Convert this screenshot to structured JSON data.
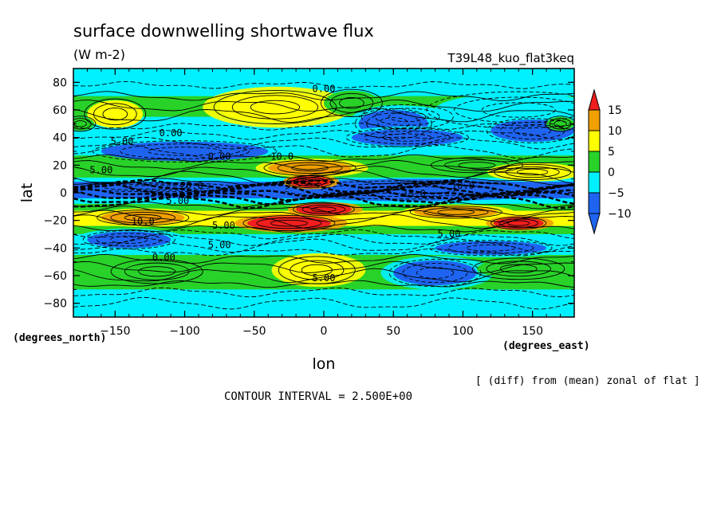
{
  "chart_data": {
    "type": "heatmap",
    "title": "surface downwelling shortwave flux",
    "units": "(W m-2)",
    "experiment": "T39L48_kuo_flat3keq",
    "xlabel": "lon",
    "ylabel": "lat",
    "x_unit_label": "(degrees_east)",
    "y_unit_label": "(degrees_north)",
    "xlim": [
      -180,
      180
    ],
    "ylim": [
      -90,
      90
    ],
    "x_ticks": [
      -150,
      -100,
      -50,
      0,
      50,
      100,
      150
    ],
    "y_ticks": [
      -80,
      -60,
      -40,
      -20,
      0,
      20,
      40,
      60,
      80
    ],
    "note": "[ (diff) from (mean) zonal of flat ]",
    "contour_interval_text": "CONTOUR INTERVAL = 2.500E+00",
    "contour_interval": 2.5,
    "colorbar": {
      "levels": [
        -10,
        -5,
        0,
        5,
        10,
        15
      ],
      "labels": [
        "15",
        "10",
        "5",
        "0",
        "-5",
        "-10"
      ],
      "colors": [
        "#1e64f0",
        "#00f0ff",
        "#28d228",
        "#ffff00",
        "#f0a000",
        "#f01e1e"
      ]
    },
    "contour_labels": [
      {
        "lon": 0,
        "lat": 73,
        "text": "0.00"
      },
      {
        "lon": -110,
        "lat": 41,
        "text": "0.00"
      },
      {
        "lon": -145,
        "lat": 35,
        "text": "5.00"
      },
      {
        "lon": -75,
        "lat": 24,
        "text": "0.00"
      },
      {
        "lon": -30,
        "lat": 24,
        "text": "10.0"
      },
      {
        "lon": -160,
        "lat": 14,
        "text": "5.00"
      },
      {
        "lon": -95,
        "lat": 3,
        "text": "20.0"
      },
      {
        "lon": -105,
        "lat": -8,
        "text": "5.00"
      },
      {
        "lon": 65,
        "lat": -3,
        "text": "15.0"
      },
      {
        "lon": 100,
        "lat": 3,
        "text": "10.0"
      },
      {
        "lon": -130,
        "lat": -23,
        "text": "10.0"
      },
      {
        "lon": -72,
        "lat": -26,
        "text": "5.00"
      },
      {
        "lon": -75,
        "lat": -40,
        "text": "5.00"
      },
      {
        "lon": 90,
        "lat": -32,
        "text": "5.00"
      },
      {
        "lon": -115,
        "lat": -49,
        "text": "0.00"
      },
      {
        "lon": 0,
        "lat": -64,
        "text": "5.00"
      }
    ],
    "anomaly_bands": [
      {
        "lat": 90,
        "value": -2
      },
      {
        "lat": 80,
        "value": -2
      },
      {
        "lat": 70,
        "value": -1
      },
      {
        "lat": 62,
        "value": 1
      },
      {
        "lat": 55,
        "value": -1
      },
      {
        "lat": 45,
        "value": -4
      },
      {
        "lat": 35,
        "value": -6
      },
      {
        "lat": 27,
        "value": -1
      },
      {
        "lat": 20,
        "value": 3
      },
      {
        "lat": 15,
        "value": 6
      },
      {
        "lat": 11,
        "value": 3
      },
      {
        "lat": 8,
        "value": -4
      },
      {
        "lat": 5,
        "value": -9
      },
      {
        "lat": 0,
        "value": -11
      },
      {
        "lat": -4,
        "value": -9
      },
      {
        "lat": -8,
        "value": 2
      },
      {
        "lat": -13,
        "value": 7
      },
      {
        "lat": -18,
        "value": 11
      },
      {
        "lat": -24,
        "value": 7
      },
      {
        "lat": -30,
        "value": 1
      },
      {
        "lat": -37,
        "value": -5
      },
      {
        "lat": -45,
        "value": -2
      },
      {
        "lat": -55,
        "value": 3
      },
      {
        "lat": -62,
        "value": 2
      },
      {
        "lat": -70,
        "value": -1
      },
      {
        "lat": -80,
        "value": -2
      },
      {
        "lat": -90,
        "value": -2
      }
    ],
    "anomaly_blobs": [
      {
        "lon": -150,
        "lat": 57,
        "dlon": 20,
        "dlat": 10,
        "value": 5
      },
      {
        "lon": -35,
        "lat": 62,
        "dlon": 40,
        "dlat": 11,
        "value": 9
      },
      {
        "lon": 20,
        "lat": 65,
        "dlon": 20,
        "dlat": 9,
        "value": 4
      },
      {
        "lon": 140,
        "lat": 60,
        "dlon": 60,
        "dlat": 12,
        "value": -1
      },
      {
        "lon": 60,
        "lat": 55,
        "dlon": 30,
        "dlat": 8,
        "value": -3
      },
      {
        "lon": 50,
        "lat": 50,
        "dlon": 25,
        "dlat": 10,
        "value": -9
      },
      {
        "lon": 150,
        "lat": 45,
        "dlon": 30,
        "dlat": 8,
        "value": -8
      },
      {
        "lon": -100,
        "lat": 30,
        "dlon": 60,
        "dlat": 7,
        "value": -7
      },
      {
        "lon": 110,
        "lat": 20,
        "dlon": 30,
        "dlat": 5,
        "value": 4
      },
      {
        "lon": 150,
        "lat": 15,
        "dlon": 25,
        "dlat": 5,
        "value": 9
      },
      {
        "lon": -10,
        "lat": 18,
        "dlon": 30,
        "dlat": 5,
        "value": 12
      },
      {
        "lon": 60,
        "lat": 2,
        "dlon": 80,
        "dlat": 6,
        "value": -15
      },
      {
        "lon": -120,
        "lat": 4,
        "dlon": 50,
        "dlat": 3,
        "value": -7
      },
      {
        "lon": -10,
        "lat": 8,
        "dlon": 15,
        "dlat": 4,
        "value": 15
      },
      {
        "lon": -25,
        "lat": -22,
        "dlon": 30,
        "dlat": 5,
        "value": 17
      },
      {
        "lon": 140,
        "lat": -22,
        "dlon": 18,
        "dlat": 4,
        "value": 16
      },
      {
        "lon": -130,
        "lat": -18,
        "dlon": 30,
        "dlat": 5,
        "value": 12
      },
      {
        "lon": 95,
        "lat": -14,
        "dlon": 30,
        "dlat": 4,
        "value": 10
      },
      {
        "lon": 0,
        "lat": -12,
        "dlon": 20,
        "dlat": 4,
        "value": 16
      },
      {
        "lon": -5,
        "lat": -56,
        "dlon": 25,
        "dlat": 9,
        "value": 9
      },
      {
        "lon": -120,
        "lat": -57,
        "dlon": 30,
        "dlat": 8,
        "value": 4
      },
      {
        "lon": 80,
        "lat": -58,
        "dlon": 30,
        "dlat": 9,
        "value": -8
      },
      {
        "lon": 140,
        "lat": -55,
        "dlon": 30,
        "dlat": 7,
        "value": 4
      },
      {
        "lon": 60,
        "lat": 40,
        "dlon": 40,
        "dlat": 6,
        "value": -8
      },
      {
        "lon": -140,
        "lat": -34,
        "dlon": 30,
        "dlat": 6,
        "value": -9
      },
      {
        "lon": 120,
        "lat": -40,
        "dlon": 40,
        "dlat": 5,
        "value": -9
      },
      {
        "lon": -175,
        "lat": 50,
        "dlon": 10,
        "dlat": 5,
        "value": 4
      },
      {
        "lon": 170,
        "lat": 50,
        "dlon": 10,
        "dlat": 5,
        "value": 1
      }
    ]
  }
}
